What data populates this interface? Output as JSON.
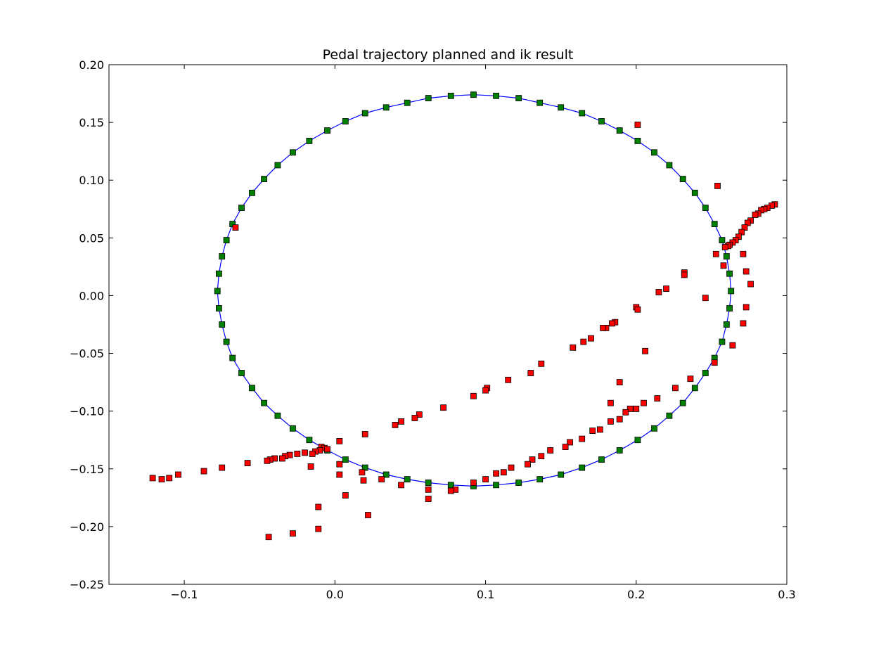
{
  "chart_data": {
    "type": "scatter",
    "title": "Pedal trajectory planned and ik result",
    "xlabel": "",
    "ylabel": "",
    "xlim": [
      -0.15,
      0.3
    ],
    "ylim": [
      -0.25,
      0.2
    ],
    "grid": false,
    "legend": "none",
    "x_ticks": [
      -0.1,
      0.0,
      0.1,
      0.2,
      0.3
    ],
    "x_tick_labels": [
      "−0.1",
      "0.0",
      "0.1",
      "0.2",
      "0.3"
    ],
    "y_ticks": [
      0.2,
      0.15,
      0.1,
      0.05,
      0.0,
      -0.05,
      -0.1,
      -0.15,
      -0.2,
      -0.25
    ],
    "y_tick_labels": [
      "0.20",
      "0.15",
      "0.10",
      "0.05",
      "0.00",
      "−0.05",
      "−0.10",
      "−0.15",
      "−0.20",
      "−0.25"
    ],
    "series": [
      {
        "kind": "line",
        "color": "#0000ff",
        "x": [
          0.092,
          0.107,
          0.122,
          0.136,
          0.15,
          0.164,
          0.177,
          0.189,
          0.201,
          0.212,
          0.222,
          0.231,
          0.239,
          0.246,
          0.252,
          0.257,
          0.26,
          0.262,
          0.263,
          0.262,
          0.26,
          0.257,
          0.252,
          0.246,
          0.239,
          0.231,
          0.222,
          0.212,
          0.201,
          0.189,
          0.177,
          0.164,
          0.15,
          0.136,
          0.122,
          0.107,
          0.092,
          0.077,
          0.062,
          0.048,
          0.034,
          0.02,
          0.007,
          -0.005,
          -0.017,
          -0.028,
          -0.038,
          -0.047,
          -0.055,
          -0.062,
          -0.068,
          -0.072,
          -0.075,
          -0.077,
          -0.078,
          -0.077,
          -0.075,
          -0.072,
          -0.068,
          -0.062,
          -0.055,
          -0.047,
          -0.038,
          -0.028,
          -0.017,
          -0.005,
          0.007,
          0.02,
          0.034,
          0.048,
          0.062,
          0.077,
          0.092
        ],
        "y": [
          0.174,
          0.173,
          0.171,
          0.167,
          0.163,
          0.158,
          0.151,
          0.143,
          0.134,
          0.124,
          0.113,
          0.101,
          0.089,
          0.076,
          0.062,
          0.048,
          0.034,
          0.019,
          0.004,
          -0.011,
          -0.025,
          -0.04,
          -0.054,
          -0.067,
          -0.08,
          -0.093,
          -0.104,
          -0.115,
          -0.125,
          -0.134,
          -0.142,
          -0.149,
          -0.155,
          -0.159,
          -0.162,
          -0.164,
          -0.165,
          -0.164,
          -0.162,
          -0.159,
          -0.155,
          -0.149,
          -0.142,
          -0.134,
          -0.125,
          -0.115,
          -0.104,
          -0.093,
          -0.08,
          -0.067,
          -0.054,
          -0.04,
          -0.025,
          -0.011,
          0.004,
          0.019,
          0.034,
          0.048,
          0.062,
          0.076,
          0.089,
          0.101,
          0.113,
          0.124,
          0.134,
          0.143,
          0.151,
          0.158,
          0.163,
          0.167,
          0.171,
          0.173,
          0.174
        ]
      },
      {
        "kind": "markers",
        "color": "#008000",
        "x": [
          0.092,
          0.107,
          0.122,
          0.136,
          0.15,
          0.164,
          0.177,
          0.189,
          0.201,
          0.212,
          0.222,
          0.231,
          0.239,
          0.246,
          0.252,
          0.257,
          0.26,
          0.262,
          0.263,
          0.262,
          0.26,
          0.257,
          0.252,
          0.246,
          0.239,
          0.231,
          0.222,
          0.212,
          0.201,
          0.189,
          0.177,
          0.164,
          0.15,
          0.136,
          0.122,
          0.107,
          0.092,
          0.077,
          0.062,
          0.048,
          0.034,
          0.02,
          0.007,
          -0.005,
          -0.017,
          -0.028,
          -0.038,
          -0.047,
          -0.055,
          -0.062,
          -0.068,
          -0.072,
          -0.075,
          -0.077,
          -0.078,
          -0.077,
          -0.075,
          -0.072,
          -0.068,
          -0.062,
          -0.055,
          -0.047,
          -0.038,
          -0.028,
          -0.017,
          -0.005,
          0.007,
          0.02,
          0.034,
          0.048,
          0.062,
          0.077
        ],
        "y": [
          0.174,
          0.173,
          0.171,
          0.167,
          0.163,
          0.158,
          0.151,
          0.143,
          0.134,
          0.124,
          0.113,
          0.101,
          0.089,
          0.076,
          0.062,
          0.048,
          0.034,
          0.019,
          0.004,
          -0.011,
          -0.025,
          -0.04,
          -0.054,
          -0.067,
          -0.08,
          -0.093,
          -0.104,
          -0.115,
          -0.125,
          -0.134,
          -0.142,
          -0.149,
          -0.155,
          -0.159,
          -0.162,
          -0.164,
          -0.165,
          -0.164,
          -0.162,
          -0.159,
          -0.155,
          -0.149,
          -0.142,
          -0.134,
          -0.125,
          -0.115,
          -0.104,
          -0.093,
          -0.08,
          -0.067,
          -0.054,
          -0.04,
          -0.025,
          -0.011,
          0.004,
          0.019,
          0.034,
          0.048,
          0.062,
          0.076,
          0.089,
          0.101,
          0.113,
          0.124,
          0.134,
          0.143,
          0.151,
          0.158,
          0.163,
          0.167,
          0.171,
          0.173
        ]
      },
      {
        "kind": "markers",
        "color": "#ff0000",
        "x": [
          0.201,
          0.254,
          0.292,
          0.29,
          0.287,
          0.285,
          0.283,
          0.281,
          0.279,
          0.276,
          0.274,
          0.272,
          0.27,
          0.268,
          0.266,
          0.264,
          0.262,
          0.261,
          0.259,
          0.253,
          0.271,
          0.258,
          0.273,
          0.276,
          0.232,
          0.232,
          0.22,
          0.215,
          0.246,
          0.273,
          0.2,
          0.201,
          0.271,
          0.186,
          0.184,
          0.18,
          0.178,
          0.264,
          0.206,
          0.17,
          0.165,
          0.158,
          0.252,
          0.137,
          0.13,
          0.189,
          0.236,
          0.226,
          0.115,
          0.101,
          0.1,
          0.092,
          0.214,
          0.205,
          0.2,
          0.196,
          0.193,
          0.183,
          0.189,
          0.183,
          0.176,
          0.171,
          0.164,
          0.156,
          0.153,
          0.143,
          0.137,
          0.131,
          0.128,
          0.117,
          0.112,
          0.107,
          0.1,
          0.092,
          0.08,
          0.077,
          0.062,
          0.062,
          0.072,
          0.056,
          0.053,
          0.044,
          0.04,
          0.02,
          0.003,
          0.003,
          0.003,
          0.018,
          0.019,
          0.007,
          0.022,
          0.031,
          0.044,
          -0.011,
          -0.009,
          -0.007,
          -0.005,
          -0.01,
          -0.013,
          -0.015,
          -0.02,
          -0.025,
          -0.03,
          -0.033,
          -0.035,
          -0.04,
          -0.043,
          -0.045,
          -0.016,
          -0.058,
          -0.075,
          -0.087,
          -0.104,
          -0.11,
          -0.115,
          -0.121,
          -0.066,
          -0.011,
          -0.028,
          -0.044
        ],
        "y": [
          0.148,
          0.095,
          0.079,
          0.078,
          0.076,
          0.075,
          0.074,
          0.071,
          0.07,
          0.065,
          0.063,
          0.059,
          0.055,
          0.051,
          0.048,
          0.046,
          0.044,
          0.043,
          0.042,
          0.036,
          0.036,
          0.026,
          0.021,
          0.01,
          0.02,
          0.018,
          0.006,
          0.003,
          -0.002,
          -0.01,
          -0.01,
          -0.012,
          -0.024,
          -0.023,
          -0.024,
          -0.028,
          -0.028,
          -0.043,
          -0.048,
          -0.037,
          -0.04,
          -0.045,
          -0.058,
          -0.059,
          -0.067,
          -0.075,
          -0.072,
          -0.08,
          -0.073,
          -0.08,
          -0.082,
          -0.087,
          -0.089,
          -0.093,
          -0.098,
          -0.098,
          -0.101,
          -0.093,
          -0.107,
          -0.109,
          -0.116,
          -0.117,
          -0.124,
          -0.127,
          -0.131,
          -0.134,
          -0.139,
          -0.142,
          -0.146,
          -0.149,
          -0.153,
          -0.154,
          -0.159,
          -0.162,
          -0.168,
          -0.169,
          -0.168,
          -0.176,
          -0.097,
          -0.103,
          -0.106,
          -0.109,
          -0.112,
          -0.12,
          -0.126,
          -0.146,
          -0.155,
          -0.153,
          -0.16,
          -0.173,
          -0.19,
          -0.159,
          -0.164,
          -0.183,
          -0.131,
          -0.132,
          -0.133,
          -0.134,
          -0.135,
          -0.137,
          -0.136,
          -0.137,
          -0.138,
          -0.139,
          -0.141,
          -0.141,
          -0.142,
          -0.143,
          -0.148,
          -0.145,
          -0.149,
          -0.152,
          -0.155,
          -0.158,
          -0.159,
          -0.158,
          0.059,
          -0.202,
          -0.206,
          -0.209
        ]
      }
    ]
  }
}
